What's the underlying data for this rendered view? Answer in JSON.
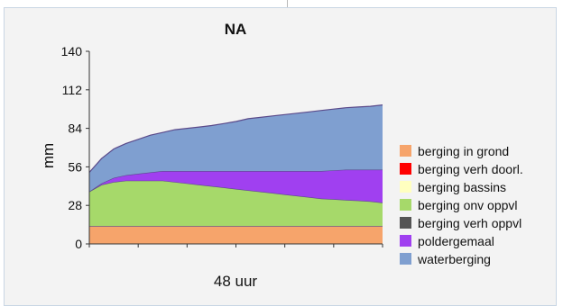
{
  "chart_data": {
    "type": "area",
    "title": "NA",
    "xlabel": "48 uur",
    "ylabel": "mm",
    "ylim": [
      0,
      140
    ],
    "yticks": [
      "140",
      "112",
      "84",
      "56",
      "28",
      "0"
    ],
    "grid": false,
    "legend_position": "right",
    "x": [
      0,
      2,
      4,
      6,
      8,
      10,
      12,
      14,
      16,
      18,
      20,
      22,
      24,
      26,
      28,
      30,
      32,
      34,
      36,
      38,
      40,
      42,
      44,
      46,
      48
    ],
    "series": [
      {
        "name": "berging in grond",
        "color": "#f6a46b",
        "values": [
          13,
          13,
          13,
          13,
          13,
          13,
          13,
          13,
          13,
          13,
          13,
          13,
          13,
          13,
          13,
          13,
          13,
          13,
          13,
          13,
          13,
          13,
          13,
          13,
          13
        ]
      },
      {
        "name": "berging verh doorl.",
        "color": "#ff0000",
        "values": [
          0,
          0,
          0,
          0,
          0,
          0,
          0,
          0,
          0,
          0,
          0,
          0,
          0,
          0,
          0,
          0,
          0,
          0,
          0,
          0,
          0,
          0,
          0,
          0,
          0
        ]
      },
      {
        "name": "berging bassins",
        "color": "#ffffc0",
        "values": [
          0,
          0,
          0,
          0,
          0,
          0,
          0,
          0,
          0,
          0,
          0,
          0,
          0,
          0,
          0,
          0,
          0,
          0,
          0,
          0,
          0,
          0,
          0,
          0,
          0
        ]
      },
      {
        "name": "berging onv oppvl",
        "color": "#a6d96a",
        "values": [
          25,
          30,
          32,
          33,
          33,
          33,
          33,
          32,
          31,
          30,
          29,
          28,
          27,
          26,
          25,
          24,
          23,
          22,
          21,
          20,
          19.5,
          19,
          18.5,
          18,
          17
        ]
      },
      {
        "name": "berging verh oppvl",
        "color": "#555555",
        "values": [
          0,
          0,
          0,
          0,
          0,
          0,
          0,
          0,
          0,
          0,
          0,
          0,
          0,
          0,
          0,
          0,
          0,
          0,
          0,
          0,
          0,
          0,
          0,
          0,
          0
        ]
      },
      {
        "name": "poldergemaal",
        "color": "#a040f0",
        "values": [
          0,
          1,
          3,
          4,
          5,
          6,
          7,
          8,
          9,
          10,
          11,
          12,
          13,
          14,
          15,
          16,
          17,
          18,
          19,
          20,
          21,
          22,
          22.5,
          23,
          24
        ]
      },
      {
        "name": "waterberging",
        "color": "#7f9fd0",
        "values": [
          14,
          18,
          21,
          23,
          25,
          27,
          28,
          30,
          31,
          32,
          33,
          34.5,
          36,
          38,
          39,
          40,
          41,
          42,
          43,
          44,
          44.5,
          45,
          45.5,
          46,
          47
        ]
      }
    ]
  }
}
